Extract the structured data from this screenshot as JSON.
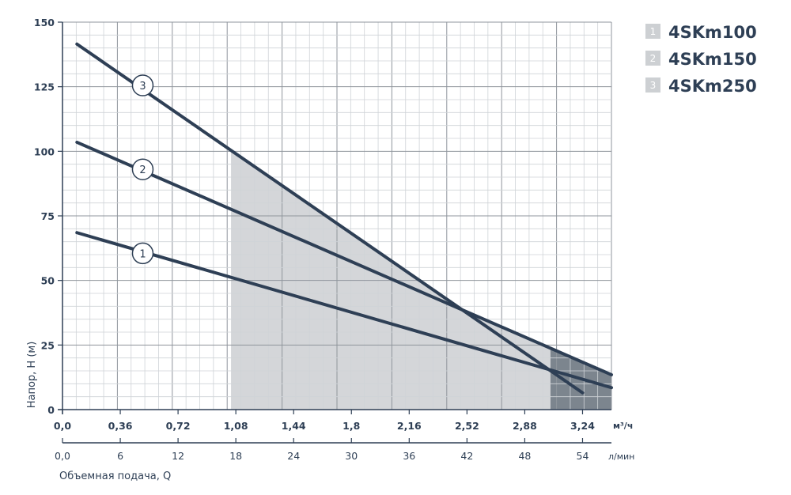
{
  "chart_data": {
    "type": "line",
    "title": "",
    "ylabel": "Напор, Н (м)",
    "xlabel": "Объемная подача, Q",
    "x_unit": "м³/ч",
    "x2_unit": "л/мин",
    "ylim": [
      0,
      150
    ],
    "xlim": [
      0,
      3.42
    ],
    "grid": true,
    "x_ticks": [
      "0,0",
      "0,36",
      "0,72",
      "1,08",
      "1,44",
      "1,8",
      "2,16",
      "2,52",
      "2,88",
      "3,24"
    ],
    "x_tick_values": [
      0,
      0.36,
      0.72,
      1.08,
      1.44,
      1.8,
      2.16,
      2.52,
      2.88,
      3.24
    ],
    "x2_ticks": [
      "0,0",
      "6",
      "12",
      "18",
      "24",
      "30",
      "36",
      "42",
      "48",
      "54"
    ],
    "x2_tick_values": [
      0,
      6,
      12,
      18,
      24,
      30,
      36,
      42,
      48,
      54
    ],
    "y_ticks": [
      "0",
      "25",
      "50",
      "75",
      "100",
      "125",
      "150"
    ],
    "y_tick_values": [
      0,
      25,
      50,
      75,
      100,
      125,
      150
    ],
    "series": [
      {
        "name": "4SKm100",
        "marker": "1",
        "x": [
          0.09,
          3.42
        ],
        "y": [
          68.5,
          8.5
        ],
        "marker_at": [
          0.5,
          60.5
        ]
      },
      {
        "name": "4SKm150",
        "marker": "2",
        "x": [
          0.09,
          3.42
        ],
        "y": [
          103.5,
          13.5
        ],
        "marker_at": [
          0.5,
          93
        ]
      },
      {
        "name": "4SKm250",
        "marker": "3",
        "x": [
          0.09,
          3.24
        ],
        "y": [
          141.5,
          6.5
        ],
        "marker_at": [
          0.5,
          125.5
        ]
      }
    ],
    "operating_ranges": [
      {
        "x_from": 1.05,
        "x_to": 3.04,
        "color": "#d4d6d9"
      },
      {
        "x_from": 3.04,
        "x_to": 3.42,
        "color": "#7c858e"
      }
    ],
    "legend": {
      "placement": "top-right",
      "items": [
        {
          "num": "1",
          "label": "4SKm100"
        },
        {
          "num": "2",
          "label": "4SKm150"
        },
        {
          "num": "3",
          "label": "4SKm250"
        }
      ]
    },
    "colors": {
      "line": "#2e3f55",
      "grid_major": "#8f959c",
      "grid_minor": "#cfd3d7",
      "legend_box": "#cdd0d3",
      "text": "#2e3f55"
    }
  }
}
